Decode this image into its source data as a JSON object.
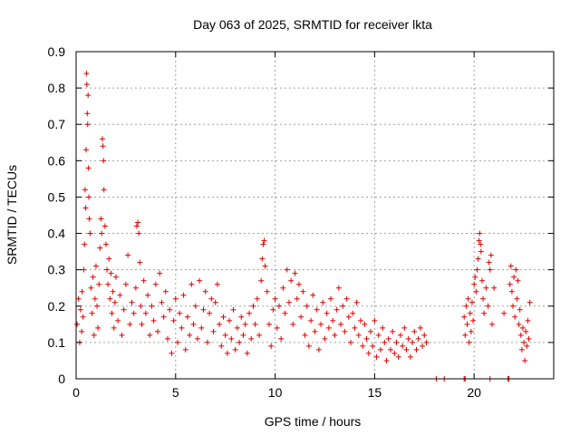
{
  "chart_data": {
    "type": "scatter",
    "title": "Day 063 of 2025, SRMTID for receiver lkta",
    "xlabel": "GPS time / hours",
    "ylabel": "SRMTID / TECUs",
    "xlim": [
      0,
      24
    ],
    "ylim": [
      0,
      0.9
    ],
    "xticks": [
      0,
      5,
      10,
      15,
      20
    ],
    "yticks": [
      0,
      0.1,
      0.2,
      0.3,
      0.4,
      0.5,
      0.6,
      0.7,
      0.8,
      0.9
    ],
    "xtick_labels": [
      "0",
      "5",
      "10",
      "15",
      "20"
    ],
    "ytick_labels": [
      "0",
      "0.1",
      "0.2",
      "0.3",
      "0.4",
      "0.5",
      "0.6",
      "0.7",
      "0.8",
      "0.9"
    ],
    "grid": true,
    "marker": "+",
    "color": "#dd0000",
    "series": [
      {
        "name": "SRMTID",
        "points": [
          [
            0.05,
            0.15
          ],
          [
            0.12,
            0.22
          ],
          [
            0.18,
            0.1
          ],
          [
            0.22,
            0.19
          ],
          [
            0.28,
            0.13
          ],
          [
            0.3,
            0.24
          ],
          [
            0.35,
            0.17
          ],
          [
            0.38,
            0.3
          ],
          [
            0.42,
            0.37
          ],
          [
            0.45,
            0.52
          ],
          [
            0.48,
            0.47
          ],
          [
            0.5,
            0.63
          ],
          [
            0.52,
            0.84
          ],
          [
            0.54,
            0.81
          ],
          [
            0.56,
            0.73
          ],
          [
            0.58,
            0.7
          ],
          [
            0.6,
            0.78
          ],
          [
            0.62,
            0.58
          ],
          [
            0.64,
            0.5
          ],
          [
            0.66,
            0.44
          ],
          [
            0.7,
            0.4
          ],
          [
            0.75,
            0.25
          ],
          [
            0.8,
            0.18
          ],
          [
            0.85,
            0.28
          ],
          [
            0.9,
            0.12
          ],
          [
            0.95,
            0.22
          ],
          [
            1.0,
            0.31
          ],
          [
            1.05,
            0.2
          ],
          [
            1.1,
            0.14
          ],
          [
            1.15,
            0.26
          ],
          [
            1.2,
            0.36
          ],
          [
            1.25,
            0.44
          ],
          [
            1.28,
            0.4
          ],
          [
            1.32,
            0.66
          ],
          [
            1.35,
            0.64
          ],
          [
            1.38,
            0.6
          ],
          [
            1.4,
            0.52
          ],
          [
            1.45,
            0.42
          ],
          [
            1.5,
            0.37
          ],
          [
            1.55,
            0.3
          ],
          [
            1.6,
            0.26
          ],
          [
            1.65,
            0.33
          ],
          [
            1.7,
            0.22
          ],
          [
            1.75,
            0.29
          ],
          [
            1.8,
            0.18
          ],
          [
            1.85,
            0.24
          ],
          [
            1.9,
            0.14
          ],
          [
            1.95,
            0.21
          ],
          [
            2.0,
            0.28
          ],
          [
            2.1,
            0.16
          ],
          [
            2.2,
            0.23
          ],
          [
            2.3,
            0.12
          ],
          [
            2.4,
            0.19
          ],
          [
            2.5,
            0.26
          ],
          [
            2.6,
            0.34
          ],
          [
            2.7,
            0.15
          ],
          [
            2.8,
            0.21
          ],
          [
            2.9,
            0.18
          ],
          [
            3.0,
            0.25
          ],
          [
            3.05,
            0.42
          ],
          [
            3.1,
            0.43
          ],
          [
            3.15,
            0.4
          ],
          [
            3.2,
            0.32
          ],
          [
            3.25,
            0.2
          ],
          [
            3.3,
            0.15
          ],
          [
            3.4,
            0.27
          ],
          [
            3.5,
            0.18
          ],
          [
            3.6,
            0.23
          ],
          [
            3.7,
            0.12
          ],
          [
            3.8,
            0.2
          ],
          [
            3.9,
            0.16
          ],
          [
            4.0,
            0.26
          ],
          [
            4.1,
            0.13
          ],
          [
            4.2,
            0.29
          ],
          [
            4.3,
            0.21
          ],
          [
            4.4,
            0.17
          ],
          [
            4.5,
            0.24
          ],
          [
            4.6,
            0.11
          ],
          [
            4.7,
            0.19
          ],
          [
            4.8,
            0.07
          ],
          [
            4.9,
            0.16
          ],
          [
            5.0,
            0.22
          ],
          [
            5.1,
            0.1
          ],
          [
            5.2,
            0.18
          ],
          [
            5.3,
            0.14
          ],
          [
            5.4,
            0.23
          ],
          [
            5.5,
            0.08
          ],
          [
            5.6,
            0.17
          ],
          [
            5.7,
            0.12
          ],
          [
            5.8,
            0.26
          ],
          [
            5.9,
            0.15
          ],
          [
            6.0,
            0.2
          ],
          [
            6.1,
            0.11
          ],
          [
            6.2,
            0.27
          ],
          [
            6.3,
            0.14
          ],
          [
            6.4,
            0.19
          ],
          [
            6.5,
            0.24
          ],
          [
            6.6,
            0.1
          ],
          [
            6.7,
            0.18
          ],
          [
            6.8,
            0.22
          ],
          [
            6.9,
            0.13
          ],
          [
            7.0,
            0.21
          ],
          [
            7.1,
            0.26
          ],
          [
            7.2,
            0.15
          ],
          [
            7.3,
            0.09
          ],
          [
            7.4,
            0.17
          ],
          [
            7.5,
            0.12
          ],
          [
            7.6,
            0.07
          ],
          [
            7.7,
            0.16
          ],
          [
            7.8,
            0.11
          ],
          [
            7.9,
            0.19
          ],
          [
            8.0,
            0.08
          ],
          [
            8.1,
            0.14
          ],
          [
            8.2,
            0.1
          ],
          [
            8.3,
            0.17
          ],
          [
            8.4,
            0.12
          ],
          [
            8.5,
            0.15
          ],
          [
            8.6,
            0.07
          ],
          [
            8.7,
            0.18
          ],
          [
            8.8,
            0.11
          ],
          [
            8.9,
            0.2
          ],
          [
            9.0,
            0.15
          ],
          [
            9.1,
            0.22
          ],
          [
            9.2,
            0.12
          ],
          [
            9.3,
            0.27
          ],
          [
            9.35,
            0.33
          ],
          [
            9.4,
            0.37
          ],
          [
            9.45,
            0.38
          ],
          [
            9.5,
            0.31
          ],
          [
            9.6,
            0.24
          ],
          [
            9.7,
            0.15
          ],
          [
            9.8,
            0.09
          ],
          [
            9.9,
            0.19
          ],
          [
            10.0,
            0.22
          ],
          [
            10.1,
            0.14
          ],
          [
            10.2,
            0.2
          ],
          [
            10.3,
            0.11
          ],
          [
            10.4,
            0.25
          ],
          [
            10.5,
            0.18
          ],
          [
            10.6,
            0.3
          ],
          [
            10.7,
            0.21
          ],
          [
            10.8,
            0.27
          ],
          [
            10.9,
            0.15
          ],
          [
            11.0,
            0.29
          ],
          [
            11.1,
            0.22
          ],
          [
            11.2,
            0.26
          ],
          [
            11.3,
            0.17
          ],
          [
            11.4,
            0.24
          ],
          [
            11.5,
            0.12
          ],
          [
            11.6,
            0.2
          ],
          [
            11.7,
            0.09
          ],
          [
            11.8,
            0.16
          ],
          [
            11.9,
            0.23
          ],
          [
            12.0,
            0.13
          ],
          [
            12.1,
            0.19
          ],
          [
            12.2,
            0.08
          ],
          [
            12.3,
            0.15
          ],
          [
            12.4,
            0.21
          ],
          [
            12.5,
            0.11
          ],
          [
            12.6,
            0.18
          ],
          [
            12.7,
            0.14
          ],
          [
            12.8,
            0.22
          ],
          [
            12.9,
            0.16
          ],
          [
            13.0,
            0.12
          ],
          [
            13.1,
            0.19
          ],
          [
            13.2,
            0.25
          ],
          [
            13.3,
            0.15
          ],
          [
            13.4,
            0.2
          ],
          [
            13.5,
            0.13
          ],
          [
            13.6,
            0.22
          ],
          [
            13.7,
            0.17
          ],
          [
            13.8,
            0.1
          ],
          [
            13.9,
            0.18
          ],
          [
            14.0,
            0.14
          ],
          [
            14.1,
            0.21
          ],
          [
            14.2,
            0.12
          ],
          [
            14.3,
            0.16
          ],
          [
            14.4,
            0.09
          ],
          [
            14.5,
            0.15
          ],
          [
            14.6,
            0.11
          ],
          [
            14.7,
            0.07
          ],
          [
            14.8,
            0.13
          ],
          [
            14.9,
            0.09
          ],
          [
            15.0,
            0.16
          ],
          [
            15.1,
            0.06
          ],
          [
            15.2,
            0.12
          ],
          [
            15.3,
            0.08
          ],
          [
            15.4,
            0.14
          ],
          [
            15.5,
            0.1
          ],
          [
            15.6,
            0.05
          ],
          [
            15.7,
            0.11
          ],
          [
            15.8,
            0.08
          ],
          [
            15.9,
            0.13
          ],
          [
            16.0,
            0.07
          ],
          [
            16.1,
            0.1
          ],
          [
            16.2,
            0.06
          ],
          [
            16.3,
            0.12
          ],
          [
            16.4,
            0.09
          ],
          [
            16.5,
            0.14
          ],
          [
            16.6,
            0.08
          ],
          [
            16.7,
            0.11
          ],
          [
            16.8,
            0.06
          ],
          [
            16.9,
            0.1
          ],
          [
            17.0,
            0.13
          ],
          [
            17.1,
            0.08
          ],
          [
            17.2,
            0.11
          ],
          [
            17.3,
            0.14
          ],
          [
            17.4,
            0.09
          ],
          [
            17.5,
            0.12
          ],
          [
            17.6,
            0.1
          ],
          [
            18.1,
            0.0
          ],
          [
            18.5,
            0.0
          ],
          [
            19.5,
            0.0
          ],
          [
            19.55,
            0.0
          ],
          [
            19.5,
            0.17
          ],
          [
            19.55,
            0.12
          ],
          [
            19.6,
            0.2
          ],
          [
            19.65,
            0.15
          ],
          [
            19.7,
            0.22
          ],
          [
            19.75,
            0.1
          ],
          [
            19.8,
            0.18
          ],
          [
            19.85,
            0.13
          ],
          [
            19.9,
            0.21
          ],
          [
            19.95,
            0.16
          ],
          [
            20.0,
            0.26
          ],
          [
            20.05,
            0.28
          ],
          [
            20.1,
            0.24
          ],
          [
            20.15,
            0.3
          ],
          [
            20.2,
            0.33
          ],
          [
            20.25,
            0.38
          ],
          [
            20.28,
            0.4
          ],
          [
            20.32,
            0.37
          ],
          [
            20.35,
            0.35
          ],
          [
            20.4,
            0.27
          ],
          [
            20.45,
            0.22
          ],
          [
            20.5,
            0.18
          ],
          [
            20.6,
            0.25
          ],
          [
            20.7,
            0.2
          ],
          [
            20.75,
            0.32
          ],
          [
            20.8,
            0.3
          ],
          [
            20.85,
            0.34
          ],
          [
            20.8,
            0.0
          ],
          [
            20.9,
            0.15
          ],
          [
            21.0,
            0.25
          ],
          [
            21.5,
            0.18
          ],
          [
            21.7,
            0.0
          ],
          [
            21.75,
            0.0
          ],
          [
            21.8,
            0.26
          ],
          [
            21.85,
            0.31
          ],
          [
            21.9,
            0.24
          ],
          [
            21.95,
            0.2
          ],
          [
            22.0,
            0.28
          ],
          [
            22.05,
            0.17
          ],
          [
            22.1,
            0.3
          ],
          [
            22.15,
            0.22
          ],
          [
            22.2,
            0.27
          ],
          [
            22.25,
            0.15
          ],
          [
            22.3,
            0.19
          ],
          [
            22.35,
            0.12
          ],
          [
            22.4,
            0.08
          ],
          [
            22.45,
            0.14
          ],
          [
            22.5,
            0.1
          ],
          [
            22.55,
            0.05
          ],
          [
            22.6,
            0.13
          ],
          [
            22.65,
            0.09
          ],
          [
            22.7,
            0.16
          ],
          [
            22.75,
            0.11
          ],
          [
            22.8,
            0.21
          ]
        ]
      }
    ]
  }
}
